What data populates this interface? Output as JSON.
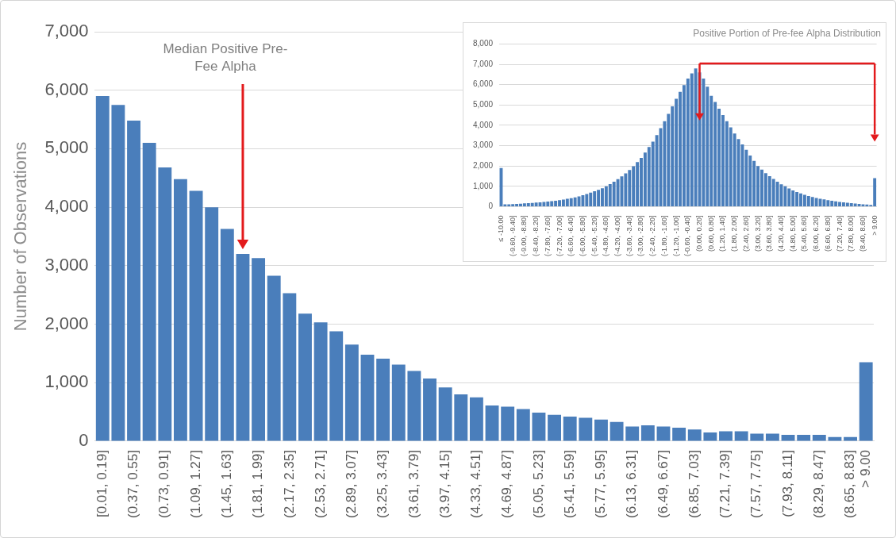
{
  "chart_data": [
    {
      "type": "bar",
      "y_label": "Number of Observations",
      "categories": [
        "[0.01, 0.19]",
        null,
        "(0.37, 0.55]",
        null,
        "(0.73, 0.91]",
        null,
        "(1.09, 1.27]",
        null,
        "(1.45, 1.63]",
        null,
        "(1.81, 1.99]",
        null,
        "(2.17, 2.35]",
        null,
        "(2.53, 2.71]",
        null,
        "(2.89, 3.07]",
        null,
        "(3.25, 3.43]",
        null,
        "(3.61, 3.79]",
        null,
        "(3.97, 4.15]",
        null,
        "(4.33, 4.51]",
        null,
        "(4.69, 4.87]",
        null,
        "(5.05, 5.23]",
        null,
        "(5.41, 5.59]",
        null,
        "(5.77, 5.95]",
        null,
        "(6.13, 6.31]",
        null,
        "(6.49, 6.67]",
        null,
        "(6.85, 7.03]",
        null,
        "(7.21, 7.39]",
        null,
        "(7.57, 7.75]",
        null,
        "(7.93, 8.11]",
        null,
        "(8.29, 8.47]",
        null,
        "(8.65, 8.83]",
        "> 9.00"
      ],
      "values": [
        5900,
        5750,
        5480,
        5100,
        4680,
        4480,
        4280,
        4000,
        3630,
        3200,
        3130,
        2830,
        2530,
        2180,
        2030,
        1880,
        1650,
        1480,
        1410,
        1310,
        1200,
        1070,
        920,
        800,
        750,
        610,
        590,
        550,
        490,
        450,
        420,
        400,
        370,
        330,
        250,
        270,
        250,
        230,
        200,
        150,
        170,
        170,
        130,
        130,
        110,
        110,
        110,
        70,
        70,
        1350
      ],
      "color": "#4a7ebb",
      "ylim": [
        0,
        7000
      ],
      "yticks": [
        0,
        {
          "value": 1000,
          "label": "1,000"
        },
        {
          "value": 2000,
          "label": "2,000"
        },
        {
          "value": 3000,
          "label": "3,000"
        },
        {
          "value": 4000,
          "label": "4,000"
        },
        {
          "value": 5000,
          "label": "5,000"
        },
        {
          "value": 6000,
          "label": "6,000"
        },
        {
          "value": 7000,
          "label": "7,000"
        }
      ],
      "grid": true,
      "annotations": [
        {
          "text": "Median Positive Pre-Fee Alpha"
        }
      ]
    },
    {
      "type": "bar",
      "title": "Positive Portion of Pre-fee Alpha Distribution",
      "categories": [
        "≤ -10.00",
        null,
        null,
        "(-9.60, -9.40]",
        null,
        null,
        "(-9.00, -8.80]",
        null,
        null,
        "(-8.40, -8.20]",
        null,
        null,
        "(-7.80, -7.60]",
        null,
        null,
        "(-7.20, -7.00]",
        null,
        null,
        "(-6.60, -6.40]",
        null,
        null,
        "(-6.00, -5.80]",
        null,
        null,
        "(-5.40, -5.20]",
        null,
        null,
        "(-4.80, -4.60]",
        null,
        null,
        "(-4.20, -4.00]",
        null,
        null,
        "(-3.60, -3.40]",
        null,
        null,
        "(-3.00, -2.80]",
        null,
        null,
        "(-2.40, -2.20]",
        null,
        null,
        "(-1.80, -1.60]",
        null,
        null,
        "(-1.20, -1.00]",
        null,
        null,
        "(-0.60, -0.40]",
        null,
        null,
        "(0.00, 0.20]",
        null,
        null,
        "(0.60, 0.80]",
        null,
        null,
        "(1.20, 1.40]",
        null,
        null,
        "(1.80, 2.00]",
        null,
        null,
        "(2.40, 2.60]",
        null,
        null,
        "(3.00, 3.20]",
        null,
        null,
        "(3.60, 3.80]",
        null,
        null,
        "(4.20, 4.40]",
        null,
        null,
        "(4.80, 5.00]",
        null,
        null,
        "(5.40, 5.60]",
        null,
        null,
        "(6.00, 6.20]",
        null,
        null,
        "(6.60, 6.80]",
        null,
        null,
        "(7.20, 7.40]",
        null,
        null,
        "(7.80, 8.00]",
        null,
        null,
        "(8.40, 8.60]",
        null,
        null,
        "> 9.00"
      ],
      "values": [
        1900,
        115,
        120,
        130,
        140,
        150,
        160,
        170,
        185,
        200,
        215,
        230,
        250,
        270,
        295,
        320,
        350,
        385,
        420,
        460,
        505,
        560,
        620,
        690,
        760,
        830,
        910,
        1000,
        1110,
        1230,
        1350,
        1490,
        1640,
        1800,
        1990,
        2190,
        2400,
        2660,
        2930,
        3200,
        3520,
        3860,
        4200,
        4560,
        4930,
        5300,
        5650,
        5980,
        6300,
        6550,
        6800,
        6600,
        6300,
        5900,
        5450,
        5150,
        4820,
        4500,
        4200,
        3900,
        3600,
        3320,
        3060,
        2800,
        2520,
        2250,
        2000,
        1820,
        1650,
        1500,
        1360,
        1230,
        1100,
        1000,
        900,
        800,
        720,
        650,
        580,
        530,
        480,
        430,
        390,
        355,
        320,
        290,
        260,
        230,
        210,
        190,
        170,
        155,
        140,
        120,
        105,
        90,
        1400
      ],
      "color": "#4a7ebb",
      "ylim": [
        0,
        8000
      ],
      "yticks": [
        0,
        {
          "value": 1000,
          "label": "1,000"
        },
        {
          "value": 2000,
          "label": "2,000"
        },
        {
          "value": 3000,
          "label": "3,000"
        },
        {
          "value": 4000,
          "label": "4,000"
        },
        {
          "value": 5000,
          "label": "5,000"
        },
        {
          "value": 6000,
          "label": "6,000"
        },
        {
          "value": 7000,
          "label": "7,000"
        },
        {
          "value": 8000,
          "label": "8,000"
        }
      ],
      "grid": true
    }
  ]
}
